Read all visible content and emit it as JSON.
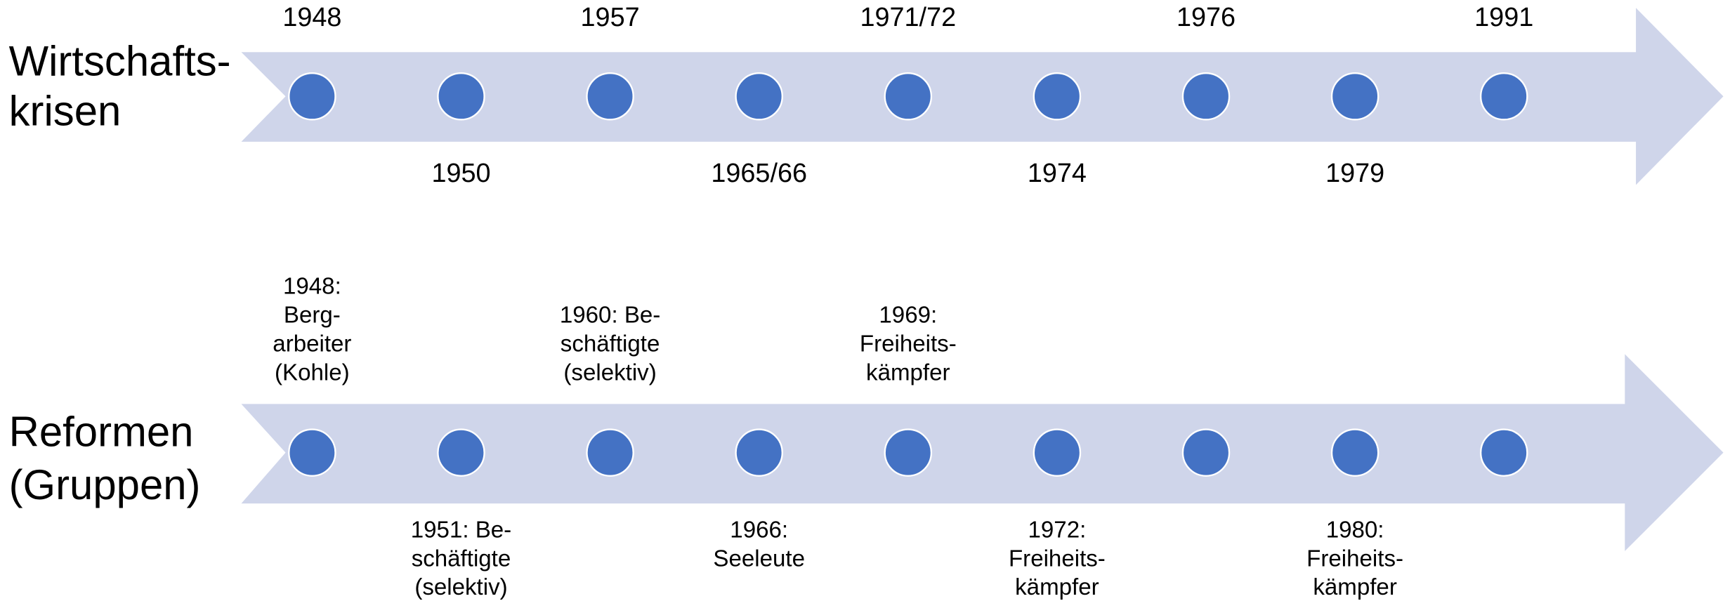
{
  "rows": [
    {
      "label": [
        "Wirtschafts-",
        "krisen"
      ],
      "events": [
        {
          "lines": [
            "1948"
          ]
        },
        {
          "lines": [
            "1950"
          ]
        },
        {
          "lines": [
            "1957"
          ]
        },
        {
          "lines": [
            "1965/66"
          ]
        },
        {
          "lines": [
            "1971/72"
          ]
        },
        {
          "lines": [
            "1974"
          ]
        },
        {
          "lines": [
            "1976"
          ]
        },
        {
          "lines": [
            "1979"
          ]
        },
        {
          "lines": [
            "1991"
          ]
        }
      ]
    },
    {
      "label": [
        "Reformen",
        "(Gruppen)"
      ],
      "events": [
        {
          "lines": [
            "1948:",
            "Berg-",
            "arbeiter",
            "(Kohle)"
          ]
        },
        {
          "lines": [
            "1951: Be-",
            "schäftigte",
            "(selektiv)"
          ]
        },
        {
          "lines": [
            "1960: Be-",
            "schäftigte",
            "(selektiv)"
          ]
        },
        {
          "lines": [
            "1966:",
            "Seeleute"
          ]
        },
        {
          "lines": [
            "1969:",
            "Freiheits-",
            "kämpfer"
          ]
        },
        {
          "lines": [
            "1972:",
            "Freiheits-",
            "kämpfer"
          ]
        },
        null,
        {
          "lines": [
            "1980:",
            "Freiheits-",
            "kämpfer"
          ]
        },
        null
      ]
    }
  ]
}
